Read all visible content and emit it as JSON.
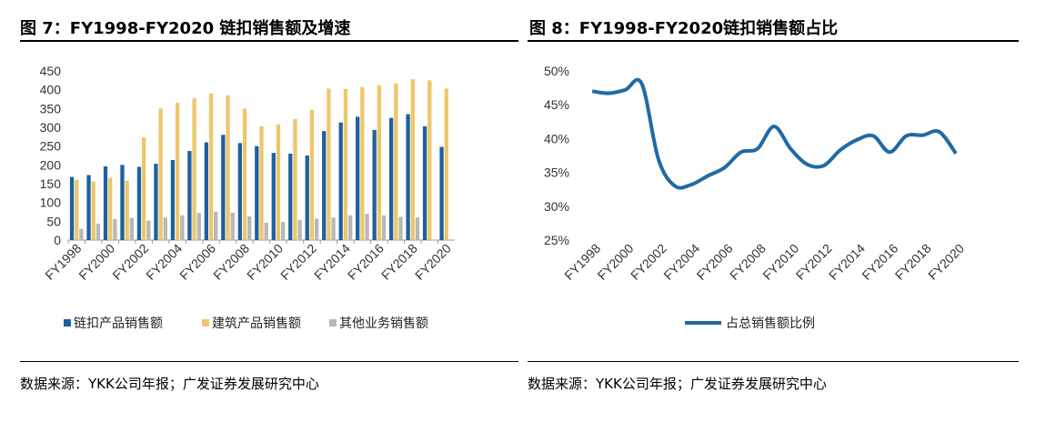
{
  "left": {
    "title": "图 7：FY1998-FY2020 链扣销售额及增速",
    "source": "数据来源：YKK公司年报；广发证券发展研究中心",
    "chart_data": {
      "type": "bar",
      "categories": [
        "FY1998",
        "FY1999",
        "FY2000",
        "FY2001",
        "FY2002",
        "FY2003",
        "FY2004",
        "FY2005",
        "FY2006",
        "FY2007",
        "FY2008",
        "FY2009",
        "FY2010",
        "FY2011",
        "FY2012",
        "FY2013",
        "FY2014",
        "FY2015",
        "FY2016",
        "FY2017",
        "FY2018",
        "FY2019",
        "FY2020"
      ],
      "tick_labels": [
        "FY1998",
        "FY2000",
        "FY2002",
        "FY2004",
        "FY2006",
        "FY2008",
        "FY2010",
        "FY2012",
        "FY2014",
        "FY2016",
        "FY2018",
        "FY2020"
      ],
      "series": [
        {
          "name": "链扣产品销售额",
          "color": "#1f5fa0",
          "values": [
            168,
            173,
            196,
            200,
            195,
            203,
            213,
            237,
            260,
            280,
            258,
            250,
            232,
            230,
            225,
            290,
            313,
            328,
            293,
            325,
            335,
            303,
            248
          ]
        },
        {
          "name": "建筑产品销售额",
          "color": "#ecc76a",
          "values": [
            160,
            156,
            166,
            158,
            273,
            350,
            365,
            377,
            390,
            385,
            350,
            303,
            308,
            322,
            346,
            403,
            402,
            407,
            412,
            417,
            428,
            425,
            403
          ]
        },
        {
          "name": "其他业务销售额",
          "color": "#b8b8b8",
          "values": [
            30,
            44,
            56,
            59,
            52,
            60,
            66,
            72,
            76,
            73,
            63,
            46,
            48,
            53,
            57,
            60,
            66,
            70,
            66,
            62,
            60,
            0,
            0
          ]
        }
      ],
      "yticks": [
        0,
        50,
        100,
        150,
        200,
        250,
        300,
        350,
        400,
        450
      ],
      "ylim": [
        0,
        450
      ],
      "legend_position": "bottom"
    }
  },
  "right": {
    "title": "图 8：FY1998-FY2020链扣销售额占比",
    "source": "数据来源：YKK公司年报；广发证券发展研究中心",
    "chart_data": {
      "type": "line",
      "x": [
        "FY1998",
        "FY1999",
        "FY2000",
        "FY2001",
        "FY2002",
        "FY2003",
        "FY2004",
        "FY2005",
        "FY2006",
        "FY2007",
        "FY2008",
        "FY2009",
        "FY2010",
        "FY2011",
        "FY2012",
        "FY2013",
        "FY2014",
        "FY2015",
        "FY2016",
        "FY2017",
        "FY2018",
        "FY2019",
        "FY2020"
      ],
      "tick_labels": [
        "FY1998",
        "FY2000",
        "FY2002",
        "FY2004",
        "FY2006",
        "FY2008",
        "FY2010",
        "FY2012",
        "FY2014",
        "FY2016",
        "FY2018",
        "FY2020"
      ],
      "series": [
        {
          "name": "占总销售额比例",
          "color": "#1f6aa5",
          "values": [
            47.0,
            46.7,
            47.2,
            48.1,
            37.0,
            33.0,
            33.2,
            34.5,
            35.7,
            38.0,
            38.5,
            41.8,
            38.5,
            36.2,
            36.0,
            38.3,
            39.8,
            40.4,
            38.0,
            40.4,
            40.5,
            41.0,
            37.8
          ]
        }
      ],
      "yticks": [
        "25%",
        "30%",
        "35%",
        "40%",
        "45%",
        "50%"
      ],
      "ylim": [
        25,
        50
      ],
      "legend_position": "bottom"
    }
  }
}
